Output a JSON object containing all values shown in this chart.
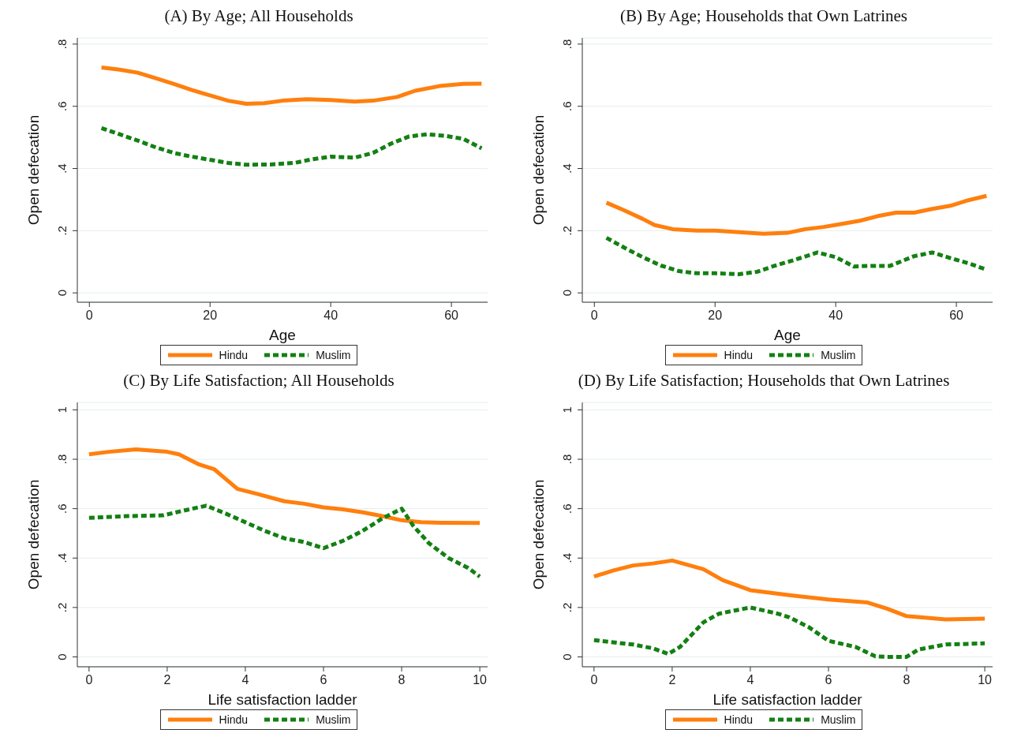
{
  "chart_data": [
    {
      "type": "line",
      "title": "(A)  By Age; All Households",
      "xlabel": "Age",
      "ylabel": "Open defecation",
      "xlim": [
        -2,
        66
      ],
      "xticks": [
        0,
        20,
        40,
        60
      ],
      "ylim": [
        -0.03,
        0.82
      ],
      "yticks": [
        {
          "value": 0,
          "label": "0"
        },
        {
          "value": 0.2,
          "label": ".2"
        },
        {
          "value": 0.4,
          "label": ".4"
        },
        {
          "value": 0.6,
          "label": ".6"
        },
        {
          "value": 0.8,
          "label": ".8"
        }
      ],
      "grid": "y",
      "legend": "bottom",
      "series": [
        {
          "name": "Hindu",
          "color": "#ff7f0e",
          "line_style": "solid",
          "x": [
            2,
            5,
            8,
            11,
            14,
            17,
            20,
            23,
            26,
            29,
            32,
            36,
            40,
            44,
            47,
            51,
            54,
            58,
            62,
            65
          ],
          "values": [
            0.725,
            0.718,
            0.708,
            0.69,
            0.672,
            0.652,
            0.635,
            0.618,
            0.608,
            0.61,
            0.618,
            0.623,
            0.62,
            0.615,
            0.618,
            0.63,
            0.65,
            0.665,
            0.672,
            0.673
          ]
        },
        {
          "name": "Muslim",
          "color": "#138013",
          "line_style": "dashed",
          "x": [
            2,
            5,
            8,
            11,
            14,
            17,
            20,
            23,
            26,
            30,
            34,
            37,
            40,
            44,
            47,
            50,
            53,
            56,
            59,
            62,
            65
          ],
          "values": [
            0.53,
            0.51,
            0.49,
            0.468,
            0.45,
            0.438,
            0.428,
            0.418,
            0.412,
            0.413,
            0.418,
            0.43,
            0.438,
            0.435,
            0.45,
            0.48,
            0.503,
            0.51,
            0.505,
            0.495,
            0.465
          ]
        }
      ]
    },
    {
      "type": "line",
      "title": "(B)  By Age; Households that Own Latrines",
      "xlabel": "Age",
      "ylabel": "Open defecation",
      "xlim": [
        -2,
        66
      ],
      "xticks": [
        0,
        20,
        40,
        60
      ],
      "ylim": [
        -0.03,
        0.82
      ],
      "yticks": [
        {
          "value": 0,
          "label": "0"
        },
        {
          "value": 0.2,
          "label": ".2"
        },
        {
          "value": 0.4,
          "label": ".4"
        },
        {
          "value": 0.6,
          "label": ".6"
        },
        {
          "value": 0.8,
          "label": ".8"
        }
      ],
      "grid": "y",
      "legend": "bottom",
      "series": [
        {
          "name": "Hindu",
          "color": "#ff7f0e",
          "line_style": "solid",
          "x": [
            2,
            5,
            8,
            10,
            13,
            17,
            20,
            24,
            28,
            32,
            35,
            38,
            41,
            44,
            47,
            50,
            53,
            56,
            59,
            62,
            65
          ],
          "values": [
            0.29,
            0.265,
            0.238,
            0.218,
            0.205,
            0.2,
            0.2,
            0.195,
            0.19,
            0.193,
            0.205,
            0.212,
            0.222,
            0.232,
            0.247,
            0.258,
            0.258,
            0.27,
            0.28,
            0.298,
            0.312
          ]
        },
        {
          "name": "Muslim",
          "color": "#138013",
          "line_style": "dashed",
          "x": [
            2,
            5,
            8,
            11,
            14,
            17,
            20,
            24,
            27,
            30,
            33,
            37,
            40,
            43,
            46,
            49,
            53,
            56,
            59,
            62,
            65
          ],
          "values": [
            0.177,
            0.145,
            0.115,
            0.088,
            0.07,
            0.063,
            0.063,
            0.06,
            0.068,
            0.088,
            0.105,
            0.13,
            0.115,
            0.085,
            0.087,
            0.087,
            0.118,
            0.13,
            0.112,
            0.095,
            0.075
          ]
        }
      ]
    },
    {
      "type": "line",
      "title": "(C)  By Life Satisfaction; All Households",
      "xlabel": "Life satisfaction ladder",
      "ylabel": "Open defecation",
      "xlim": [
        -0.3,
        10.2
      ],
      "xticks": [
        0,
        2,
        4,
        6,
        8,
        10
      ],
      "ylim": [
        -0.04,
        1.03
      ],
      "yticks": [
        {
          "value": 0,
          "label": "0"
        },
        {
          "value": 0.2,
          "label": ".2"
        },
        {
          "value": 0.4,
          "label": ".4"
        },
        {
          "value": 0.6,
          "label": ".6"
        },
        {
          "value": 0.8,
          "label": ".8"
        },
        {
          "value": 1,
          "label": "1"
        }
      ],
      "grid": "y",
      "legend": "bottom",
      "series": [
        {
          "name": "Hindu",
          "color": "#ff7f0e",
          "line_style": "solid",
          "x": [
            0,
            0.5,
            1.2,
            2,
            2.3,
            2.8,
            3.2,
            3.5,
            3.8,
            4.3,
            5,
            5.5,
            6,
            6.5,
            7,
            7.5,
            8,
            8.5,
            9,
            10
          ],
          "values": [
            0.82,
            0.83,
            0.84,
            0.83,
            0.82,
            0.78,
            0.76,
            0.72,
            0.68,
            0.66,
            0.63,
            0.62,
            0.605,
            0.597,
            0.585,
            0.57,
            0.553,
            0.545,
            0.543,
            0.542
          ]
        },
        {
          "name": "Muslim",
          "color": "#138013",
          "line_style": "dashed",
          "x": [
            0,
            1,
            1.9,
            2.5,
            3,
            3.5,
            4,
            4.5,
            5,
            5.5,
            6,
            6.5,
            7,
            7.5,
            8,
            8.3,
            8.7,
            9.2,
            9.7,
            10
          ],
          "values": [
            0.563,
            0.57,
            0.573,
            0.595,
            0.612,
            0.58,
            0.545,
            0.51,
            0.48,
            0.465,
            0.44,
            0.47,
            0.51,
            0.56,
            0.6,
            0.53,
            0.46,
            0.4,
            0.36,
            0.325
          ]
        }
      ]
    },
    {
      "type": "line",
      "title": "(D)  By Life Satisfaction; Households that Own Latrines",
      "xlabel": "Life satisfaction ladder",
      "ylabel": "Open defecation",
      "xlim": [
        -0.3,
        10.2
      ],
      "xticks": [
        0,
        2,
        4,
        6,
        8,
        10
      ],
      "ylim": [
        -0.04,
        1.03
      ],
      "yticks": [
        {
          "value": 0,
          "label": "0"
        },
        {
          "value": 0.2,
          "label": ".2"
        },
        {
          "value": 0.4,
          "label": ".4"
        },
        {
          "value": 0.6,
          "label": ".6"
        },
        {
          "value": 0.8,
          "label": ".8"
        },
        {
          "value": 1,
          "label": "1"
        }
      ],
      "grid": "y",
      "legend": "bottom",
      "series": [
        {
          "name": "Hindu",
          "color": "#ff7f0e",
          "line_style": "solid",
          "x": [
            0,
            0.5,
            1,
            1.5,
            2,
            2.8,
            3.3,
            4,
            5,
            6,
            7,
            7.5,
            8,
            9,
            10
          ],
          "values": [
            0.325,
            0.35,
            0.37,
            0.378,
            0.39,
            0.355,
            0.31,
            0.27,
            0.25,
            0.232,
            0.22,
            0.195,
            0.165,
            0.152,
            0.155
          ]
        },
        {
          "name": "Muslim",
          "color": "#138013",
          "line_style": "dashed",
          "x": [
            0,
            1,
            1.5,
            1.9,
            2.2,
            2.8,
            3.2,
            4,
            4.7,
            5,
            5.5,
            6,
            6.7,
            7.2,
            7.5,
            8,
            8.3,
            9,
            10
          ],
          "values": [
            0.068,
            0.05,
            0.035,
            0.012,
            0.04,
            0.14,
            0.175,
            0.2,
            0.175,
            0.16,
            0.12,
            0.065,
            0.04,
            0.002,
            0,
            0,
            0.03,
            0.05,
            0.055
          ]
        }
      ]
    }
  ]
}
